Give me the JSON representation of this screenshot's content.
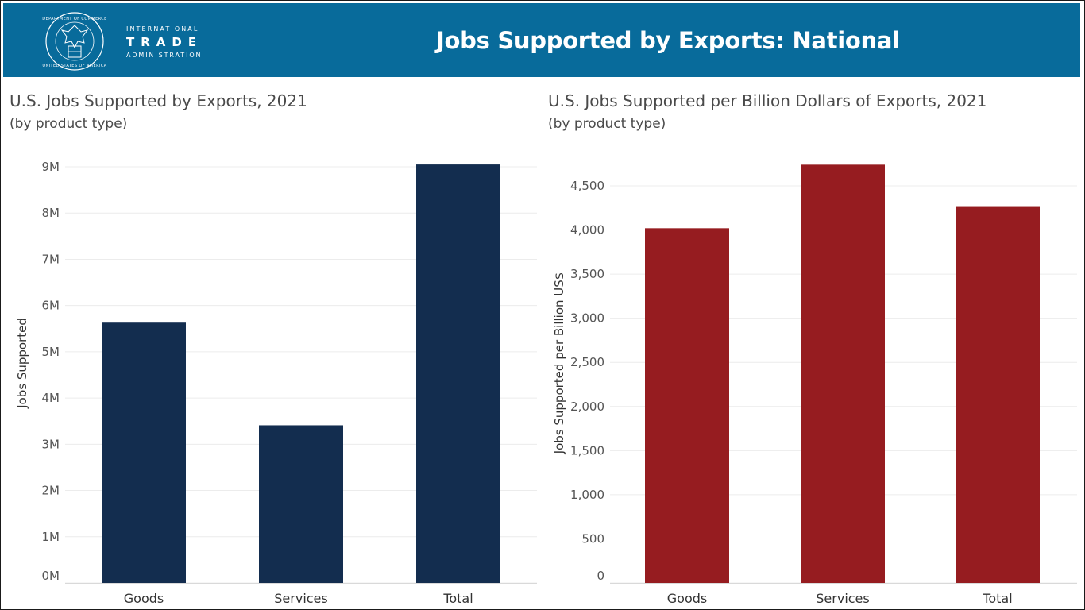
{
  "header": {
    "title": "Jobs Supported by Exports: National",
    "logo": {
      "line1": "INTERNATIONAL",
      "line2": "TRADE",
      "line3": "ADMINISTRATION",
      "seal_text": "DEPARTMENT OF COMMERCE · UNITED STATES OF AMERICA"
    },
    "banner_color": "#086b9b"
  },
  "chart_data": [
    {
      "type": "bar",
      "title": "U.S. Jobs Supported by Exports, 2021",
      "subtitle": "(by product type)",
      "xlabel": "",
      "ylabel": "Jobs Supported",
      "categories": [
        "Goods",
        "Services",
        "Total"
      ],
      "values": [
        5630000,
        3410000,
        9050000
      ],
      "ylim": [
        0,
        9000000
      ],
      "yticks": [
        0,
        1000000,
        2000000,
        3000000,
        4000000,
        5000000,
        6000000,
        7000000,
        8000000,
        9000000
      ],
      "ytick_labels": [
        "0M",
        "1M",
        "2M",
        "3M",
        "4M",
        "5M",
        "6M",
        "7M",
        "8M",
        "9M"
      ],
      "color": "#132d4f",
      "grid": true
    },
    {
      "type": "bar",
      "title": "U.S. Jobs Supported per Billion Dollars of Exports, 2021",
      "subtitle": "(by product type)",
      "xlabel": "",
      "ylabel": "Jobs Supported per Billion US$",
      "categories": [
        "Goods",
        "Services",
        "Total"
      ],
      "values": [
        4020,
        4740,
        4270
      ],
      "ylim": [
        0,
        4500
      ],
      "yticks": [
        0,
        500,
        1000,
        1500,
        2000,
        2500,
        3000,
        3500,
        4000,
        4500
      ],
      "ytick_labels": [
        "0",
        "500",
        "1,000",
        "1,500",
        "2,000",
        "2,500",
        "3,000",
        "3,500",
        "4,000",
        "4,500"
      ],
      "color": "#961c20",
      "grid": true
    }
  ]
}
